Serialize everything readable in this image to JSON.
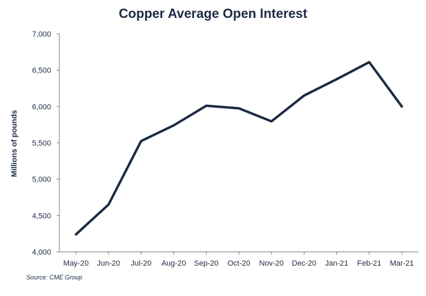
{
  "chart_data": {
    "type": "line",
    "title": "Copper Average Open Interest",
    "ylabel": "Millions of pounds",
    "xlabel": "",
    "source": "Source: CME Group",
    "categories": [
      "May-20",
      "Jun-20",
      "Jul-20",
      "Aug-20",
      "Sep-20",
      "Oct-20",
      "Nov-20",
      "Dec-20",
      "Jan-21",
      "Feb-21",
      "Mar-21"
    ],
    "series": [
      {
        "values": [
          4240,
          4650,
          5525,
          5740,
          6010,
          5975,
          5795,
          6150,
          6375,
          6610,
          6000
        ]
      }
    ],
    "ylim": [
      4000,
      7000
    ],
    "yticks": [
      "4,000",
      "4,500",
      "5,000",
      "5,500",
      "6,000",
      "6,500",
      "7,000"
    ],
    "grid": false,
    "line_color": "#1b2a41"
  }
}
